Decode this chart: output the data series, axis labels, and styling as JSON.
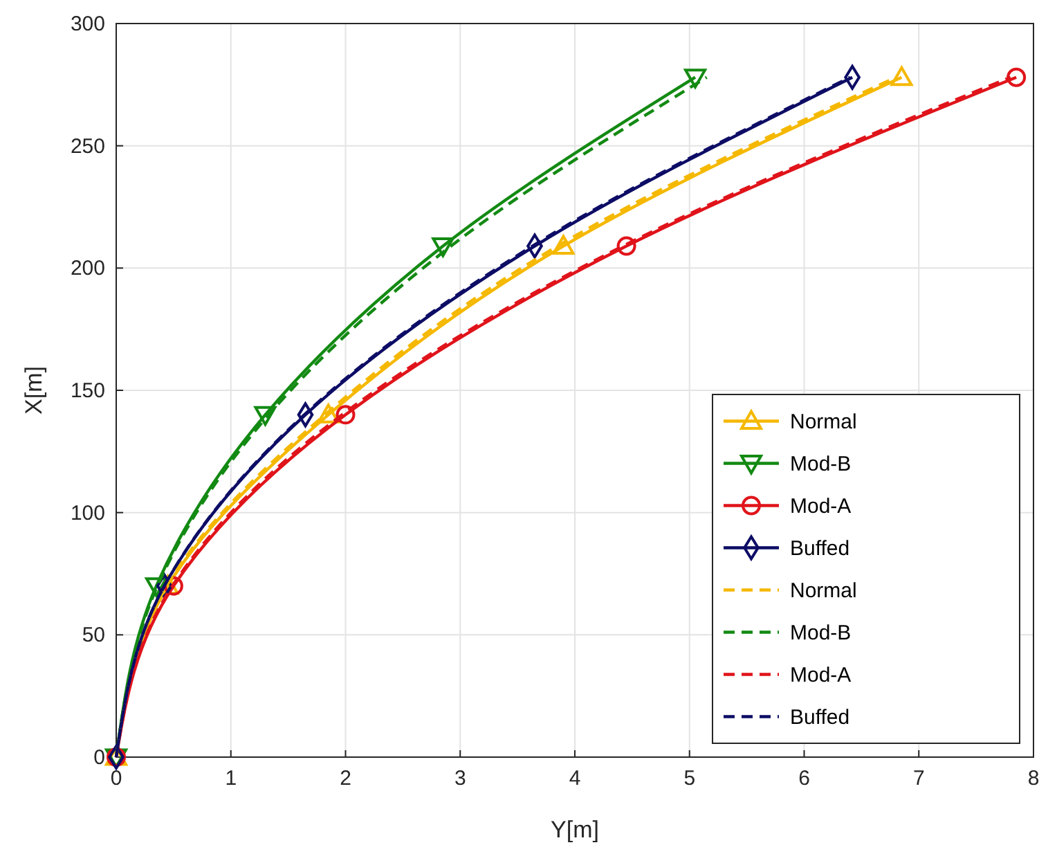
{
  "chart_data": {
    "type": "line",
    "xlabel": "Y[m]",
    "ylabel": "X[m]",
    "xlim": [
      0,
      8
    ],
    "ylim": [
      0,
      300
    ],
    "xticks": [
      0,
      1,
      2,
      3,
      4,
      5,
      6,
      7,
      8
    ],
    "yticks": [
      0,
      50,
      100,
      150,
      200,
      250,
      300
    ],
    "grid": true,
    "legend": "bottom right",
    "series": [
      {
        "name": "Normal",
        "color": "#f5b800",
        "marker": "triangle",
        "line_style": "solid",
        "x": [
          0,
          0.45,
          1.85,
          3.9,
          6.85
        ],
        "values": [
          0,
          70,
          140,
          209,
          278
        ]
      },
      {
        "name": "Mod-B",
        "color": "#138a13",
        "marker": "triangle-down",
        "line_style": "solid",
        "x": [
          0,
          0.35,
          1.3,
          2.85,
          5.05
        ],
        "values": [
          0,
          70,
          140,
          209,
          278
        ]
      },
      {
        "name": "Mod-A",
        "color": "#e0141b",
        "marker": "circle",
        "line_style": "solid",
        "x": [
          0,
          0.5,
          2.0,
          4.45,
          7.85
        ],
        "values": [
          0,
          70,
          140,
          209,
          278
        ]
      },
      {
        "name": "Buffed",
        "color": "#0d0d66",
        "marker": "diamond",
        "line_style": "solid",
        "x": [
          0,
          0.42,
          1.65,
          3.65,
          6.42
        ],
        "values": [
          0,
          70,
          140,
          209,
          278
        ]
      },
      {
        "name": "Normal",
        "color": "#f5b800",
        "marker": "none",
        "line_style": "dashed",
        "x": [
          0,
          0.44,
          1.82,
          3.85,
          6.8
        ],
        "values": [
          0,
          70,
          140,
          209,
          278
        ]
      },
      {
        "name": "Mod-B",
        "color": "#138a13",
        "marker": "none",
        "line_style": "dashed",
        "x": [
          0,
          0.36,
          1.33,
          2.92,
          5.15
        ],
        "values": [
          0,
          70,
          140,
          209,
          278
        ]
      },
      {
        "name": "Mod-A",
        "color": "#e0141b",
        "marker": "none",
        "line_style": "dashed",
        "x": [
          0,
          0.49,
          1.97,
          4.42,
          7.8
        ],
        "values": [
          0,
          70,
          140,
          209,
          278
        ]
      },
      {
        "name": "Buffed",
        "color": "#0d0d66",
        "marker": "none",
        "line_style": "dashed",
        "x": [
          0,
          0.42,
          1.64,
          3.63,
          6.4
        ],
        "values": [
          0,
          70,
          140,
          209,
          278
        ]
      }
    ]
  }
}
